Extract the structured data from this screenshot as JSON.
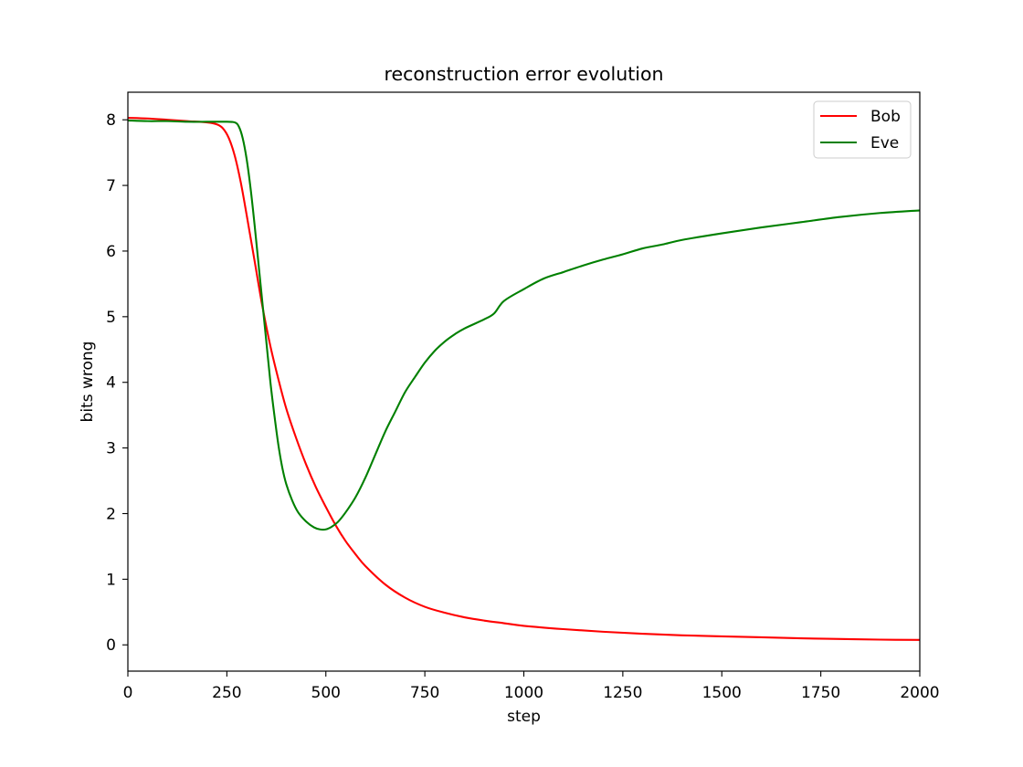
{
  "chart_data": {
    "type": "line",
    "title": "reconstruction error evolution",
    "xlabel": "step",
    "ylabel": "bits wrong",
    "xlim": [
      0,
      2000
    ],
    "ylim": [
      -0.4,
      8.42
    ],
    "xticks": [
      0,
      250,
      500,
      750,
      1000,
      1250,
      1500,
      1750,
      2000
    ],
    "yticks": [
      0,
      1,
      2,
      3,
      4,
      5,
      6,
      7,
      8
    ],
    "grid": false,
    "legend_position": "top-right",
    "series": [
      {
        "name": "Bob",
        "color": "#ff0000",
        "points": [
          [
            0,
            8.03
          ],
          [
            50,
            8.02
          ],
          [
            100,
            8.0
          ],
          [
            150,
            7.98
          ],
          [
            200,
            7.96
          ],
          [
            225,
            7.93
          ],
          [
            240,
            7.87
          ],
          [
            255,
            7.72
          ],
          [
            270,
            7.45
          ],
          [
            285,
            7.05
          ],
          [
            300,
            6.55
          ],
          [
            320,
            5.85
          ],
          [
            340,
            5.15
          ],
          [
            360,
            4.55
          ],
          [
            380,
            4.05
          ],
          [
            400,
            3.6
          ],
          [
            425,
            3.15
          ],
          [
            450,
            2.75
          ],
          [
            475,
            2.4
          ],
          [
            500,
            2.1
          ],
          [
            525,
            1.82
          ],
          [
            550,
            1.58
          ],
          [
            575,
            1.38
          ],
          [
            600,
            1.2
          ],
          [
            650,
            0.92
          ],
          [
            700,
            0.72
          ],
          [
            750,
            0.58
          ],
          [
            800,
            0.49
          ],
          [
            850,
            0.42
          ],
          [
            900,
            0.37
          ],
          [
            950,
            0.33
          ],
          [
            1000,
            0.29
          ],
          [
            1100,
            0.24
          ],
          [
            1200,
            0.2
          ],
          [
            1300,
            0.17
          ],
          [
            1400,
            0.145
          ],
          [
            1500,
            0.13
          ],
          [
            1600,
            0.115
          ],
          [
            1700,
            0.1
          ],
          [
            1800,
            0.09
          ],
          [
            1900,
            0.08
          ],
          [
            2000,
            0.075
          ]
        ]
      },
      {
        "name": "Eve",
        "color": "#008000",
        "points": [
          [
            0,
            7.99
          ],
          [
            50,
            7.98
          ],
          [
            100,
            7.98
          ],
          [
            150,
            7.97
          ],
          [
            200,
            7.97
          ],
          [
            250,
            7.97
          ],
          [
            270,
            7.96
          ],
          [
            280,
            7.9
          ],
          [
            290,
            7.72
          ],
          [
            300,
            7.4
          ],
          [
            310,
            6.95
          ],
          [
            320,
            6.4
          ],
          [
            330,
            5.8
          ],
          [
            340,
            5.2
          ],
          [
            350,
            4.6
          ],
          [
            360,
            4.0
          ],
          [
            370,
            3.5
          ],
          [
            380,
            3.05
          ],
          [
            390,
            2.7
          ],
          [
            400,
            2.45
          ],
          [
            415,
            2.2
          ],
          [
            430,
            2.02
          ],
          [
            450,
            1.88
          ],
          [
            470,
            1.79
          ],
          [
            485,
            1.76
          ],
          [
            500,
            1.76
          ],
          [
            515,
            1.8
          ],
          [
            530,
            1.87
          ],
          [
            550,
            2.02
          ],
          [
            575,
            2.25
          ],
          [
            600,
            2.55
          ],
          [
            625,
            2.9
          ],
          [
            650,
            3.25
          ],
          [
            675,
            3.55
          ],
          [
            700,
            3.85
          ],
          [
            725,
            4.08
          ],
          [
            750,
            4.3
          ],
          [
            775,
            4.48
          ],
          [
            800,
            4.62
          ],
          [
            825,
            4.73
          ],
          [
            850,
            4.82
          ],
          [
            900,
            4.96
          ],
          [
            925,
            5.05
          ],
          [
            950,
            5.24
          ],
          [
            1000,
            5.42
          ],
          [
            1050,
            5.58
          ],
          [
            1100,
            5.68
          ],
          [
            1150,
            5.78
          ],
          [
            1200,
            5.87
          ],
          [
            1250,
            5.95
          ],
          [
            1300,
            6.04
          ],
          [
            1350,
            6.1
          ],
          [
            1400,
            6.17
          ],
          [
            1500,
            6.27
          ],
          [
            1600,
            6.36
          ],
          [
            1700,
            6.44
          ],
          [
            1800,
            6.52
          ],
          [
            1900,
            6.58
          ],
          [
            2000,
            6.62
          ]
        ]
      }
    ]
  }
}
